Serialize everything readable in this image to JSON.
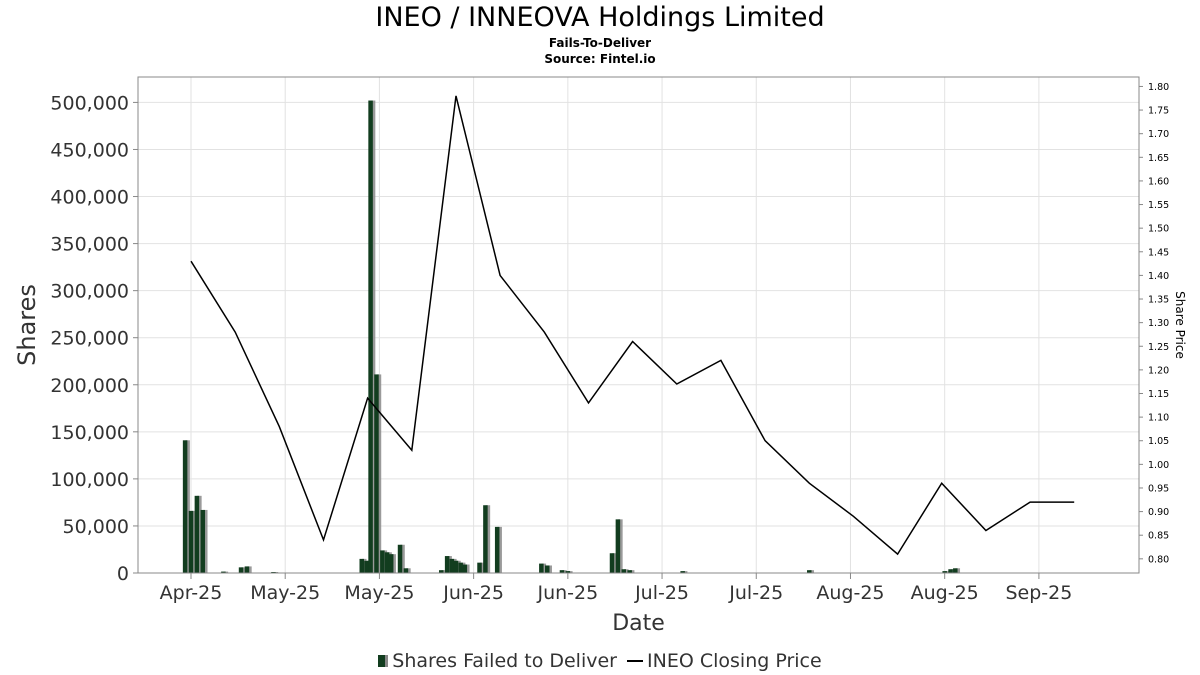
{
  "title": "INEO / INNEOVA Holdings Limited",
  "subtitle": "Fails-To-Deliver",
  "source": "Source: Fintel.io",
  "legend": {
    "bars_label": "Shares Failed to Deliver",
    "line_label": "INEO Closing Price"
  },
  "chart_data": {
    "type": "bar",
    "xlabel": "Date",
    "ylabel": "Shares",
    "y2label": "Share Price",
    "ylim": [
      0,
      527000
    ],
    "y2lim": [
      0.77,
      1.82
    ],
    "yticks": [
      0,
      50000,
      100000,
      150000,
      200000,
      250000,
      300000,
      350000,
      400000,
      450000,
      500000
    ],
    "ytick_labels": [
      "0",
      "50,000",
      "100,000",
      "150,000",
      "200,000",
      "250,000",
      "300,000",
      "350,000",
      "400,000",
      "450,000",
      "500,000"
    ],
    "y2ticks": [
      0.8,
      0.85,
      0.9,
      0.95,
      1.0,
      1.05,
      1.1,
      1.15,
      1.2,
      1.25,
      1.3,
      1.35,
      1.4,
      1.45,
      1.5,
      1.55,
      1.6,
      1.65,
      1.7,
      1.75,
      1.8
    ],
    "y2tick_labels": [
      "0.80",
      "0.85",
      "0.90",
      "0.95",
      "1.00",
      "1.05",
      "1.10",
      "1.15",
      "1.20",
      "1.25",
      "1.30",
      "1.35",
      "1.40",
      "1.45",
      "1.50",
      "1.55",
      "1.60",
      "1.65",
      "1.70",
      "1.75",
      "1.80"
    ],
    "xlim": [
      0,
      170
    ],
    "xticks": [
      {
        "t": 9,
        "label": "Apr-25"
      },
      {
        "t": 25,
        "label": "May-25"
      },
      {
        "t": 41,
        "label": "May-25"
      },
      {
        "t": 57,
        "label": "Jun-25"
      },
      {
        "t": 73,
        "label": "Jun-25"
      },
      {
        "t": 89,
        "label": "Jul-25"
      },
      {
        "t": 105,
        "label": "Jul-25"
      },
      {
        "t": 121,
        "label": "Aug-25"
      },
      {
        "t": 137,
        "label": "Aug-25"
      },
      {
        "t": 153,
        "label": "Sep-25"
      }
    ],
    "grid": true,
    "legend_position": "bottom-center",
    "series": [
      {
        "name": "Shares Failed to Deliver",
        "type": "bar",
        "color": "#123d1f",
        "shadow_color": "#888888",
        "points": [
          {
            "t": 8,
            "v": 141000
          },
          {
            "t": 9,
            "v": 66000
          },
          {
            "t": 10,
            "v": 82000
          },
          {
            "t": 11,
            "v": 67000
          },
          {
            "t": 14.5,
            "v": 1500
          },
          {
            "t": 17.5,
            "v": 6000
          },
          {
            "t": 18.5,
            "v": 7000
          },
          {
            "t": 23,
            "v": 1000
          },
          {
            "t": 38,
            "v": 15000
          },
          {
            "t": 38.8,
            "v": 13000
          },
          {
            "t": 39.5,
            "v": 502000
          },
          {
            "t": 40.5,
            "v": 211000
          },
          {
            "t": 41.5,
            "v": 24000
          },
          {
            "t": 42.3,
            "v": 22000
          },
          {
            "t": 43,
            "v": 20000
          },
          {
            "t": 44.5,
            "v": 30000
          },
          {
            "t": 45.5,
            "v": 5000
          },
          {
            "t": 51.5,
            "v": 3000
          },
          {
            "t": 52.5,
            "v": 18000
          },
          {
            "t": 53.3,
            "v": 15000
          },
          {
            "t": 54,
            "v": 13000
          },
          {
            "t": 54.8,
            "v": 11000
          },
          {
            "t": 55.5,
            "v": 9000
          },
          {
            "t": 58,
            "v": 11000
          },
          {
            "t": 59,
            "v": 72000
          },
          {
            "t": 61,
            "v": 49000
          },
          {
            "t": 68.5,
            "v": 10000
          },
          {
            "t": 69.5,
            "v": 8000
          },
          {
            "t": 72,
            "v": 3000
          },
          {
            "t": 73,
            "v": 2000
          },
          {
            "t": 80.5,
            "v": 21000
          },
          {
            "t": 81.5,
            "v": 57000
          },
          {
            "t": 82.5,
            "v": 4000
          },
          {
            "t": 83.5,
            "v": 3000
          },
          {
            "t": 92.5,
            "v": 2000
          },
          {
            "t": 114,
            "v": 3000
          },
          {
            "t": 137,
            "v": 2000
          },
          {
            "t": 138,
            "v": 4000
          },
          {
            "t": 138.8,
            "v": 5000
          }
        ]
      },
      {
        "name": "INEO Closing Price",
        "type": "line",
        "color": "#000000",
        "points": [
          {
            "t": 9,
            "v": 1.43
          },
          {
            "t": 16.5,
            "v": 1.28
          },
          {
            "t": 24,
            "v": 1.08
          },
          {
            "t": 31.5,
            "v": 0.84
          },
          {
            "t": 39,
            "v": 1.14
          },
          {
            "t": 46.5,
            "v": 1.03
          },
          {
            "t": 54,
            "v": 1.78
          },
          {
            "t": 61.5,
            "v": 1.4
          },
          {
            "t": 69,
            "v": 1.28
          },
          {
            "t": 76.5,
            "v": 1.13
          },
          {
            "t": 84,
            "v": 1.26
          },
          {
            "t": 91.5,
            "v": 1.17
          },
          {
            "t": 99,
            "v": 1.22
          },
          {
            "t": 106.5,
            "v": 1.05
          },
          {
            "t": 114,
            "v": 0.96
          },
          {
            "t": 121.5,
            "v": 0.89
          },
          {
            "t": 129,
            "v": 0.81
          },
          {
            "t": 136.5,
            "v": 0.96
          },
          {
            "t": 144,
            "v": 0.86
          },
          {
            "t": 151.5,
            "v": 0.92
          },
          {
            "t": 159,
            "v": 0.92
          }
        ]
      }
    ]
  }
}
